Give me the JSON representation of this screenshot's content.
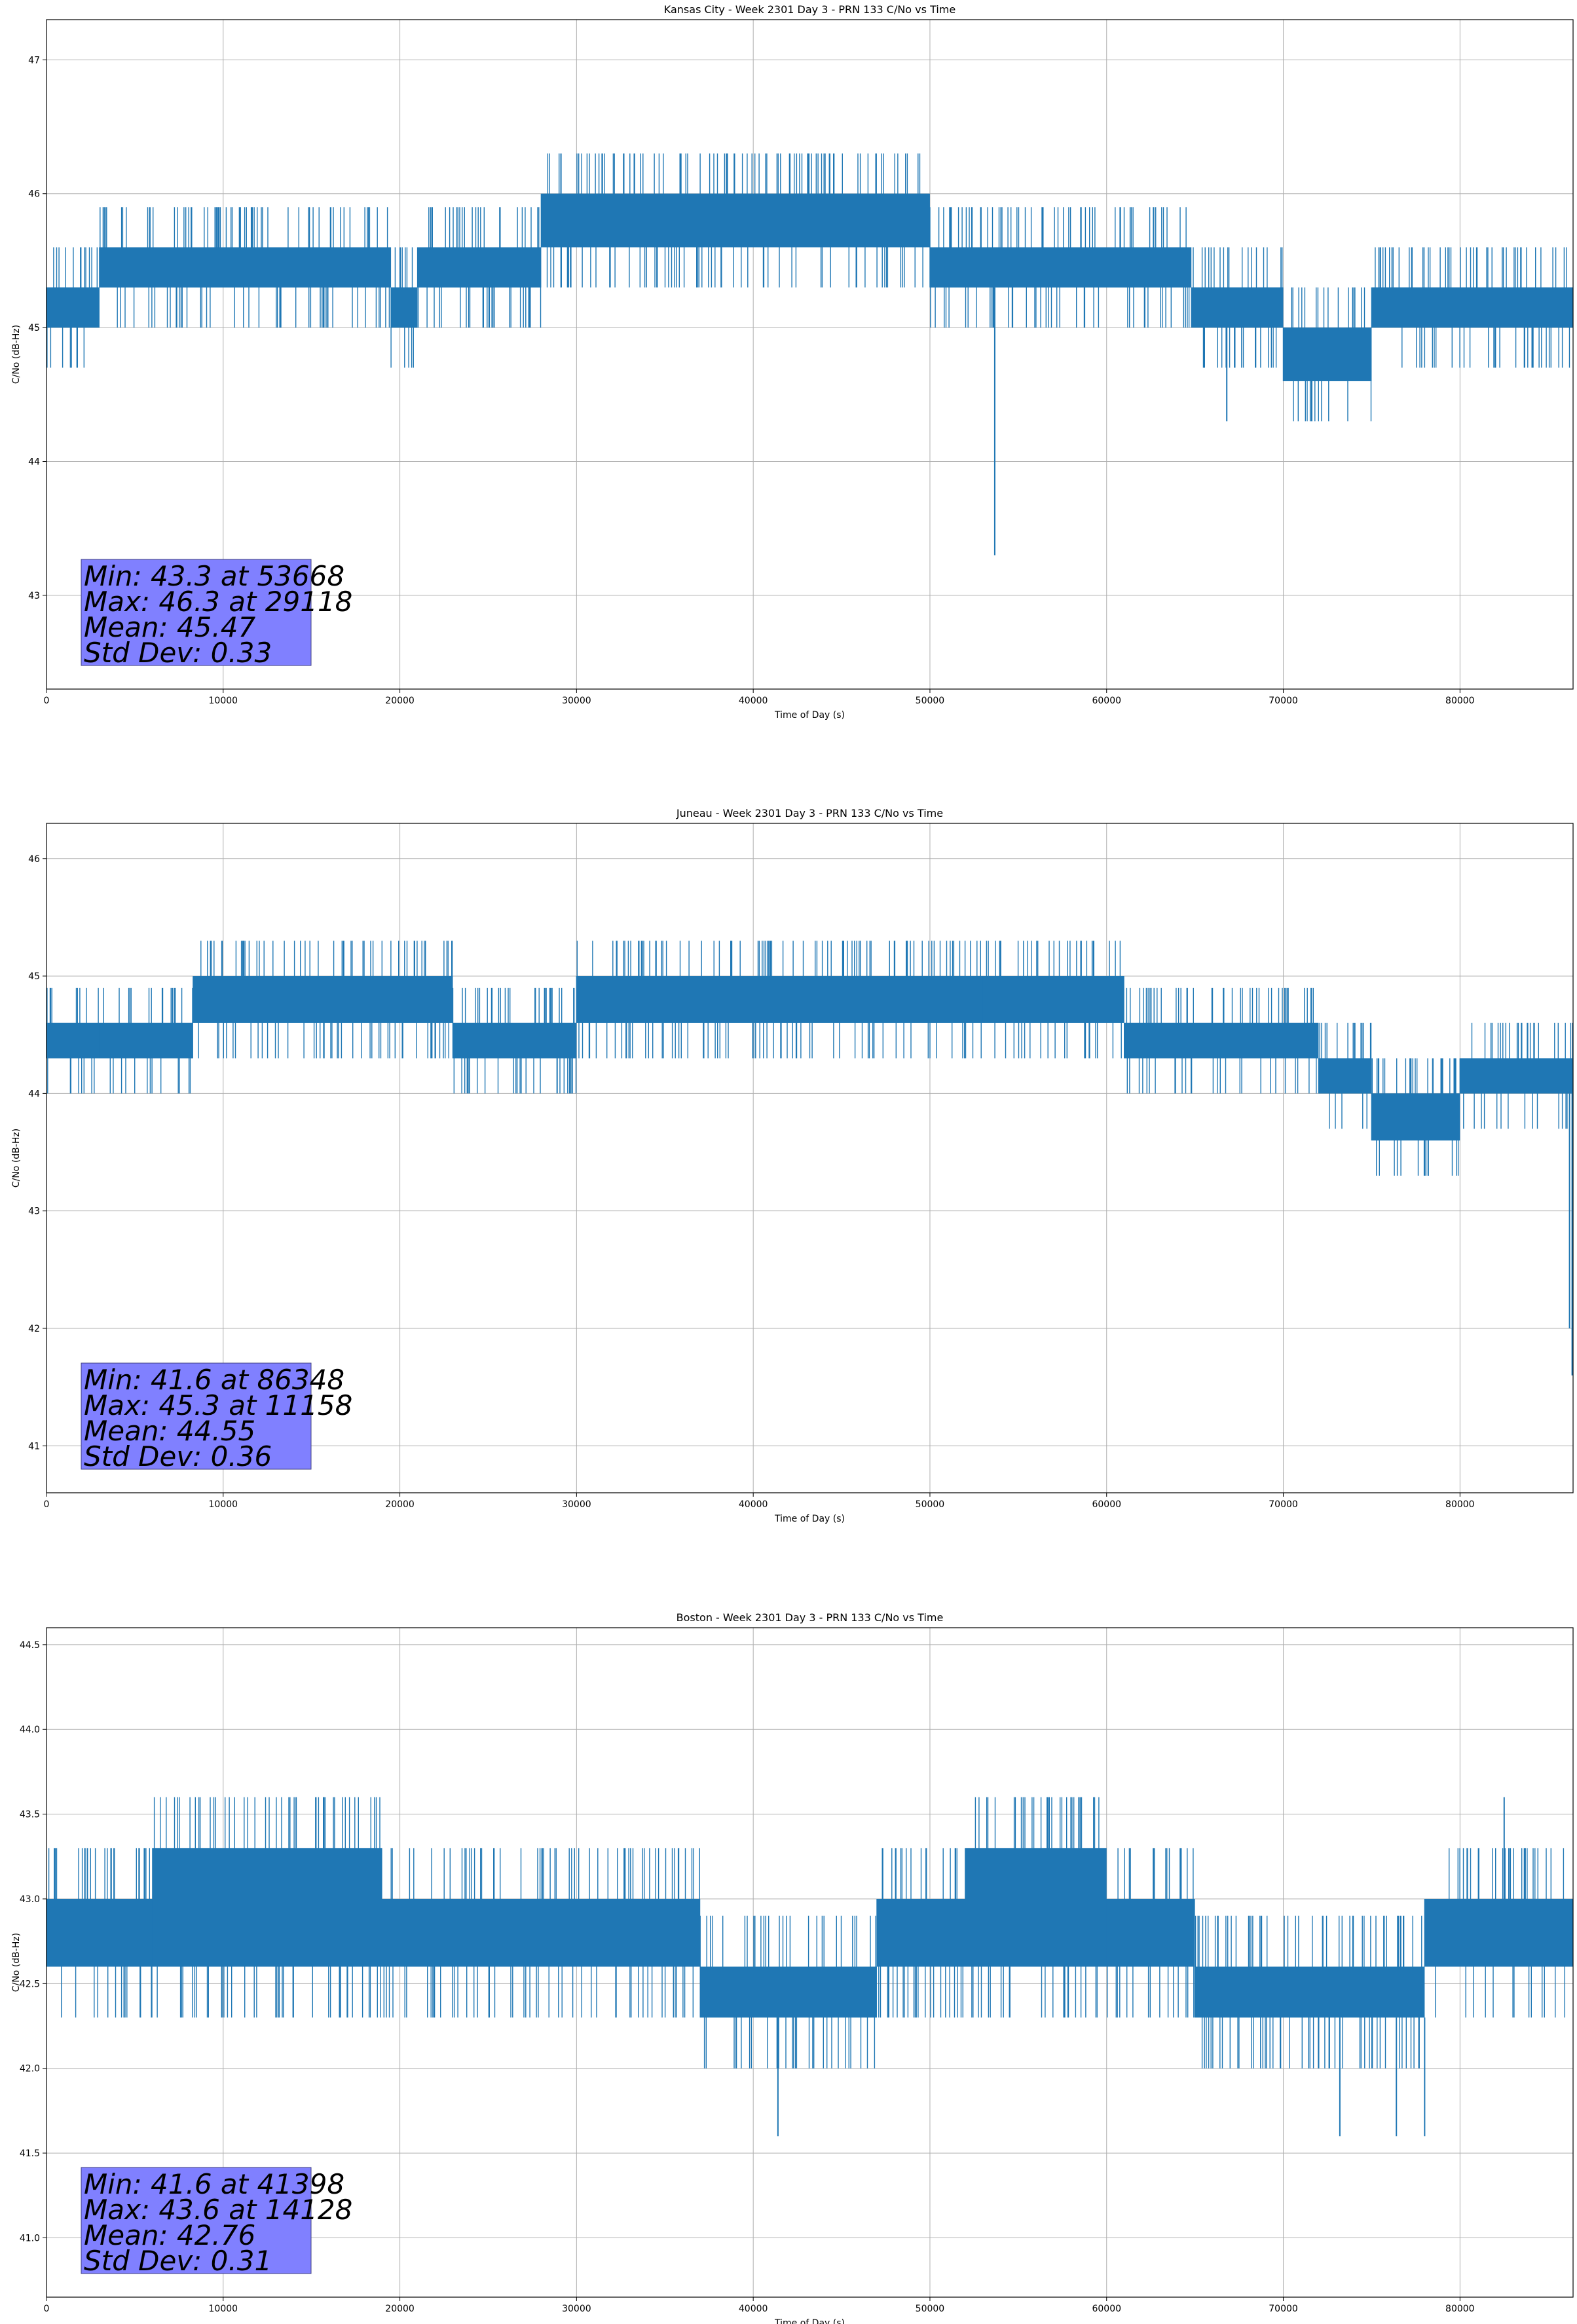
{
  "chart_data": [
    {
      "type": "line",
      "title": "Kansas City - Week 2301 Day 3 - PRN 133 C/No vs Time",
      "xlabel": "Time of Day (s)",
      "ylabel": "C/No (dB-Hz)",
      "xlim": [
        0,
        86400
      ],
      "ylim": [
        42.3,
        47.3
      ],
      "xticks": [
        0,
        10000,
        20000,
        30000,
        40000,
        50000,
        60000,
        70000,
        80000
      ],
      "yticks": [
        43,
        44,
        45,
        46,
        47
      ],
      "ytick_labels": [
        "43",
        "44",
        "45",
        "46",
        "47"
      ],
      "grid": true,
      "color": "#1f77b4",
      "quantum": 0.3,
      "bands": [
        {
          "x": [
            0,
            3000
          ],
          "lo": 45.0,
          "hi": 45.3
        },
        {
          "x": [
            3000,
            19500
          ],
          "lo": 45.3,
          "hi": 45.6
        },
        {
          "x": [
            19500,
            21000
          ],
          "lo": 45.0,
          "hi": 45.3
        },
        {
          "x": [
            21000,
            28000
          ],
          "lo": 45.3,
          "hi": 45.6
        },
        {
          "x": [
            28000,
            50000
          ],
          "lo": 45.6,
          "hi": 46.0
        },
        {
          "x": [
            50000,
            64800
          ],
          "lo": 45.3,
          "hi": 45.6
        },
        {
          "x": [
            64800,
            70000
          ],
          "lo": 45.0,
          "hi": 45.3
        },
        {
          "x": [
            70000,
            75000
          ],
          "lo": 44.6,
          "hi": 45.0
        },
        {
          "x": [
            75000,
            86400
          ],
          "lo": 45.0,
          "hi": 45.3
        }
      ],
      "spikes": [
        {
          "x": 53668,
          "y": 43.3
        },
        {
          "x": 66800,
          "y": 44.3
        },
        {
          "x": 29118,
          "y": 46.3
        }
      ],
      "stats": [
        "Min: 43.3 at 53668",
        "Max: 46.3 at 29118",
        "Mean: 45.47",
        "Std Dev: 0.33"
      ],
      "stats_box_color": "#8080ff"
    },
    {
      "type": "line",
      "title": "Juneau - Week 2301 Day 3 - PRN 133 C/No vs Time",
      "xlabel": "Time of Day (s)",
      "ylabel": "C/No (dB-Hz)",
      "xlim": [
        0,
        86400
      ],
      "ylim": [
        40.6,
        46.3
      ],
      "xticks": [
        0,
        10000,
        20000,
        30000,
        40000,
        50000,
        60000,
        70000,
        80000
      ],
      "yticks": [
        41,
        42,
        43,
        44,
        45,
        46
      ],
      "ytick_labels": [
        "41",
        "42",
        "43",
        "44",
        "45",
        "46"
      ],
      "grid": true,
      "color": "#1f77b4",
      "quantum": 0.3,
      "bands": [
        {
          "x": [
            0,
            3000
          ],
          "lo": 44.3,
          "hi": 44.6
        },
        {
          "x": [
            3000,
            8300
          ],
          "lo": 44.3,
          "hi": 44.6
        },
        {
          "x": [
            8300,
            23000
          ],
          "lo": 44.6,
          "hi": 45.0
        },
        {
          "x": [
            23000,
            30000
          ],
          "lo": 44.3,
          "hi": 44.6
        },
        {
          "x": [
            30000,
            53000
          ],
          "lo": 44.6,
          "hi": 45.0
        },
        {
          "x": [
            53000,
            61000
          ],
          "lo": 44.6,
          "hi": 45.0
        },
        {
          "x": [
            61000,
            72000
          ],
          "lo": 44.3,
          "hi": 44.6
        },
        {
          "x": [
            72000,
            75000
          ],
          "lo": 44.0,
          "hi": 44.3
        },
        {
          "x": [
            75000,
            80000
          ],
          "lo": 43.6,
          "hi": 44.0
        },
        {
          "x": [
            80000,
            86400
          ],
          "lo": 44.0,
          "hi": 44.3
        }
      ],
      "spikes": [
        {
          "x": 86348,
          "y": 41.6
        },
        {
          "x": 86200,
          "y": 42.0
        },
        {
          "x": 11158,
          "y": 45.3
        },
        {
          "x": 28900,
          "y": 44.0
        },
        {
          "x": 78200,
          "y": 43.3
        }
      ],
      "stats": [
        "Min: 41.6 at 86348",
        "Max: 45.3 at 11158",
        "Mean: 44.55",
        "Std Dev: 0.36"
      ],
      "stats_box_color": "#8080ff"
    },
    {
      "type": "line",
      "title": "Boston - Week 2301 Day 3 - PRN 133 C/No vs Time",
      "xlabel": "Time of Day (s)",
      "ylabel": "C/No (dB-Hz)",
      "xlim": [
        0,
        86400
      ],
      "ylim": [
        40.65,
        44.6
      ],
      "xticks": [
        0,
        10000,
        20000,
        30000,
        40000,
        50000,
        60000,
        70000,
        80000
      ],
      "yticks": [
        41.0,
        41.5,
        42.0,
        42.5,
        43.0,
        43.5,
        44.0,
        44.5
      ],
      "ytick_labels": [
        "41.0",
        "41.5",
        "42.0",
        "42.5",
        "43.0",
        "43.5",
        "44.0",
        "44.5"
      ],
      "grid": true,
      "color": "#1f77b4",
      "quantum": 0.3,
      "bands": [
        {
          "x": [
            0,
            6000
          ],
          "lo": 42.6,
          "hi": 43.0
        },
        {
          "x": [
            6000,
            19000
          ],
          "lo": 42.6,
          "hi": 43.3
        },
        {
          "x": [
            19000,
            37000
          ],
          "lo": 42.6,
          "hi": 43.0
        },
        {
          "x": [
            37000,
            47000
          ],
          "lo": 42.3,
          "hi": 42.6
        },
        {
          "x": [
            47000,
            52000
          ],
          "lo": 42.6,
          "hi": 43.0
        },
        {
          "x": [
            52000,
            60000
          ],
          "lo": 42.6,
          "hi": 43.3
        },
        {
          "x": [
            60000,
            65000
          ],
          "lo": 42.6,
          "hi": 43.0
        },
        {
          "x": [
            65000,
            74000
          ],
          "lo": 42.3,
          "hi": 42.6
        },
        {
          "x": [
            74000,
            78000
          ],
          "lo": 42.3,
          "hi": 42.6
        },
        {
          "x": [
            78000,
            86400
          ],
          "lo": 42.6,
          "hi": 43.0
        }
      ],
      "spikes": [
        {
          "x": 41398,
          "y": 41.6
        },
        {
          "x": 14128,
          "y": 43.6
        },
        {
          "x": 15700,
          "y": 43.6
        },
        {
          "x": 73200,
          "y": 41.6
        },
        {
          "x": 76400,
          "y": 41.6
        },
        {
          "x": 78000,
          "y": 41.6
        },
        {
          "x": 82500,
          "y": 43.6
        },
        {
          "x": 58500,
          "y": 43.6
        }
      ],
      "stats": [
        "Min: 41.6 at 41398",
        "Max: 43.6 at 14128",
        "Mean: 42.76",
        "Std Dev: 0.31"
      ],
      "stats_box_color": "#8080ff"
    }
  ]
}
